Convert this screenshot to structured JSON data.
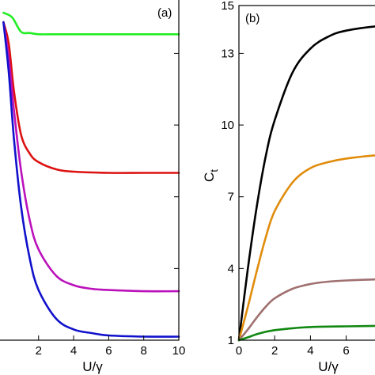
{
  "chart_data": [
    {
      "type": "line",
      "panel_label": "(a)",
      "xlabel": "U/γ",
      "ylabel": "",
      "xlim": [
        -0.2,
        10
      ],
      "x_ticks": [
        2,
        4,
        6,
        8,
        10
      ],
      "x_tick_labels": [
        "2",
        "4",
        "6",
        "8",
        "10"
      ],
      "grid": false,
      "series": [
        {
          "color": "#22ee22",
          "points": [
            [
              0,
              14.7
            ],
            [
              0.5,
              14.5
            ],
            [
              1,
              13.9
            ],
            [
              1.5,
              13.85
            ],
            [
              2,
              13.8
            ],
            [
              3,
              13.8
            ],
            [
              4,
              13.8
            ],
            [
              6,
              13.8
            ],
            [
              8,
              13.8
            ],
            [
              10,
              13.8
            ]
          ]
        },
        {
          "color": "#dd1111",
          "points": [
            [
              0,
              14.3
            ],
            [
              0.3,
              13.4
            ],
            [
              0.6,
              11.4
            ],
            [
              1,
              9.6
            ],
            [
              1.5,
              8.8
            ],
            [
              2,
              8.45
            ],
            [
              3,
              8.15
            ],
            [
              4,
              8.05
            ],
            [
              6,
              8.0
            ],
            [
              8,
              8.0
            ],
            [
              10,
              8.0
            ]
          ]
        },
        {
          "color": "#bb11bb",
          "points": [
            [
              0,
              14.3
            ],
            [
              0.3,
              12.8
            ],
            [
              0.6,
              10.6
            ],
            [
              1,
              8.1
            ],
            [
              1.5,
              6.0
            ],
            [
              2,
              4.8
            ],
            [
              3,
              3.7
            ],
            [
              4,
              3.3
            ],
            [
              5,
              3.15
            ],
            [
              6,
              3.1
            ],
            [
              8,
              3.05
            ],
            [
              10,
              3.05
            ]
          ]
        },
        {
          "color": "#1111cc",
          "points": [
            [
              0,
              14.3
            ],
            [
              0.3,
              12.2
            ],
            [
              0.6,
              9.4
            ],
            [
              1,
              6.6
            ],
            [
              1.5,
              4.4
            ],
            [
              2,
              3.1
            ],
            [
              3,
              1.9
            ],
            [
              4,
              1.45
            ],
            [
              5,
              1.3
            ],
            [
              6,
              1.2
            ],
            [
              8,
              1.15
            ],
            [
              10,
              1.15
            ]
          ]
        }
      ]
    },
    {
      "type": "line",
      "panel_label": "(b)",
      "xlabel": "U/γ",
      "ylabel": "C",
      "ylabel_sub": "t",
      "ylim": [
        1,
        15
      ],
      "y_ticks": [
        1,
        4,
        7,
        10,
        13,
        15
      ],
      "y_tick_labels": [
        "1",
        "4",
        "7",
        "10",
        "13",
        "15"
      ],
      "xlim": [
        0,
        10
      ],
      "x_ticks": [
        0,
        2,
        4,
        6
      ],
      "x_tick_labels": [
        "0",
        "2",
        "4",
        "6"
      ],
      "grid": false,
      "series": [
        {
          "color": "#000000",
          "points": [
            [
              0,
              1
            ],
            [
              0.5,
              4.0
            ],
            [
              1,
              6.6
            ],
            [
              1.5,
              8.7
            ],
            [
              2,
              10.2
            ],
            [
              3,
              12.2
            ],
            [
              4,
              13.2
            ],
            [
              5,
              13.7
            ],
            [
              6,
              13.95
            ],
            [
              8,
              14.15
            ],
            [
              10,
              14.2
            ]
          ]
        },
        {
          "color": "#e08c0c",
          "points": [
            [
              0,
              1
            ],
            [
              0.5,
              2.4
            ],
            [
              1,
              3.9
            ],
            [
              1.5,
              5.3
            ],
            [
              2,
              6.4
            ],
            [
              3,
              7.6
            ],
            [
              4,
              8.2
            ],
            [
              5,
              8.45
            ],
            [
              6,
              8.6
            ],
            [
              8,
              8.75
            ],
            [
              10,
              8.8
            ]
          ]
        },
        {
          "color": "#a07070",
          "points": [
            [
              0,
              1
            ],
            [
              0.5,
              1.45
            ],
            [
              1,
              1.95
            ],
            [
              1.5,
              2.4
            ],
            [
              2,
              2.75
            ],
            [
              3,
              3.15
            ],
            [
              4,
              3.35
            ],
            [
              5,
              3.45
            ],
            [
              6,
              3.5
            ],
            [
              8,
              3.55
            ],
            [
              10,
              3.55
            ]
          ]
        },
        {
          "color": "#118811",
          "points": [
            [
              0,
              1
            ],
            [
              0.5,
              1.12
            ],
            [
              1,
              1.25
            ],
            [
              1.5,
              1.35
            ],
            [
              2,
              1.42
            ],
            [
              3,
              1.5
            ],
            [
              4,
              1.55
            ],
            [
              5,
              1.57
            ],
            [
              6,
              1.58
            ],
            [
              8,
              1.6
            ],
            [
              10,
              1.6
            ]
          ]
        }
      ]
    }
  ]
}
